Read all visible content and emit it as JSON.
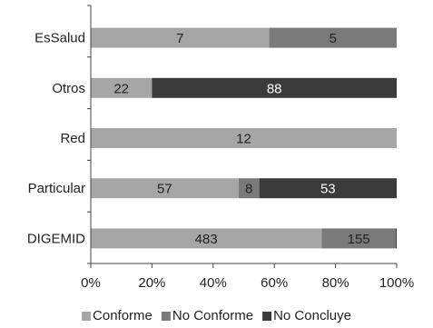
{
  "chart_data": {
    "type": "bar",
    "orientation": "horizontal",
    "stacked": "percent",
    "title": "",
    "xlabel": "",
    "ylabel": "",
    "xlim": [
      0,
      100
    ],
    "xticks": [
      "0%",
      "20%",
      "40%",
      "60%",
      "80%",
      "100%"
    ],
    "grid": false,
    "legend_position": "bottom",
    "categories": [
      "EsSalud",
      "Otros",
      "Red",
      "Particular",
      "DIGEMID"
    ],
    "series": [
      {
        "name": "Conforme",
        "color": "#a6a6a6",
        "label_color": "#222222",
        "values": [
          7,
          22,
          12,
          57,
          483
        ]
      },
      {
        "name": "No Conforme",
        "color": "#7a7a7a",
        "label_color": "#222222",
        "values": [
          5,
          0,
          0,
          8,
          155
        ]
      },
      {
        "name": "No Concluye",
        "color": "#3b3b3b",
        "label_color": "#ffffff",
        "values": [
          0,
          88,
          0,
          53,
          2
        ]
      }
    ],
    "data_labels": [
      [
        "7",
        "22",
        "12",
        "57",
        "483"
      ],
      [
        "5",
        "",
        "",
        "8",
        "155"
      ],
      [
        "",
        "88",
        "",
        "53",
        ""
      ]
    ]
  }
}
